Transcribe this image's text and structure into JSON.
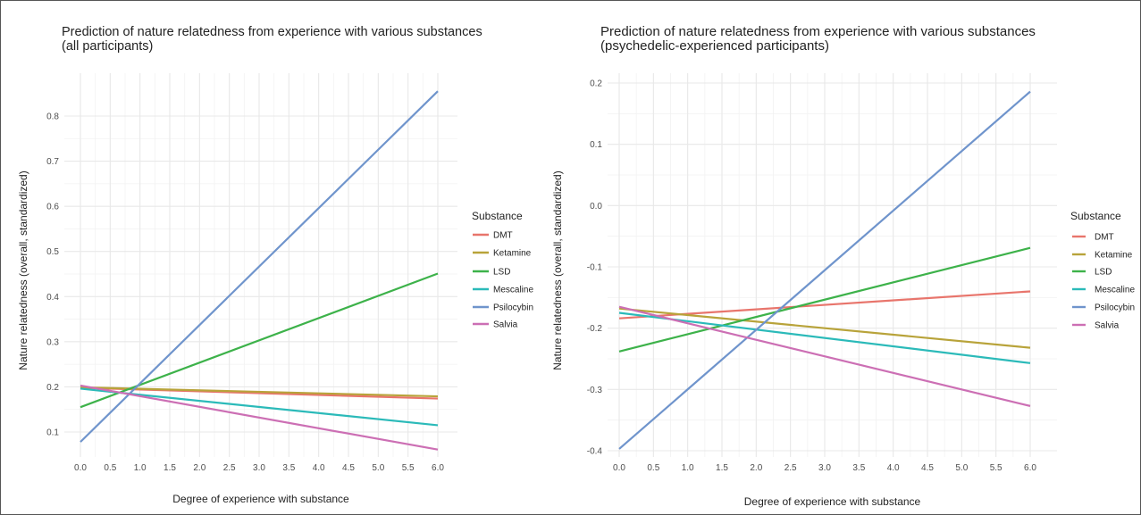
{
  "chart_data": [
    {
      "type": "line",
      "title": "Prediction of nature relatedness from experience with various substances",
      "subtitle": "(all participants)",
      "xlabel": "Degree of experience with substance",
      "ylabel": "Nature relatedness (overall, standardized)",
      "xlim": [
        0,
        6
      ],
      "ylim": [
        0.06,
        0.86
      ],
      "x_ticks": [
        "0.0",
        "0.5",
        "1.0",
        "1.5",
        "2.0",
        "2.5",
        "3.0",
        "3.5",
        "4.0",
        "4.5",
        "5.0",
        "5.5",
        "6.0"
      ],
      "y_ticks": [
        0.1,
        0.2,
        0.3,
        0.4,
        0.5,
        0.6,
        0.7,
        0.8
      ],
      "y_tick_labels": [
        "0.1",
        "0.2",
        "0.3",
        "0.4",
        "0.5",
        "0.6",
        "0.7",
        "0.8"
      ],
      "grid": true,
      "legend_title": "Substance",
      "legend_position": "right",
      "series": [
        {
          "name": "DMT",
          "color": "#E8756C",
          "x": [
            0,
            6
          ],
          "y": [
            0.198,
            0.174
          ]
        },
        {
          "name": "Ketamine",
          "color": "#B8A33A",
          "x": [
            0,
            6
          ],
          "y": [
            0.199,
            0.179
          ]
        },
        {
          "name": "LSD",
          "color": "#3DB24A",
          "x": [
            0,
            6
          ],
          "y": [
            0.155,
            0.451
          ]
        },
        {
          "name": "Mescaline",
          "color": "#2BBAB9",
          "x": [
            0,
            6
          ],
          "y": [
            0.196,
            0.115
          ]
        },
        {
          "name": "Psilocybin",
          "color": "#6F94CC",
          "x": [
            0,
            6
          ],
          "y": [
            0.078,
            0.855
          ]
        },
        {
          "name": "Salvia",
          "color": "#CC6FB4",
          "x": [
            0,
            6
          ],
          "y": [
            0.203,
            0.061
          ]
        }
      ]
    },
    {
      "type": "line",
      "title": "Prediction of nature relatedness from experience with various substances",
      "subtitle": "(psychedelic-experienced participants)",
      "xlabel": "Degree of experience with substance",
      "ylabel": "Nature relatedness (overall, standardized)",
      "xlim": [
        0,
        6
      ],
      "ylim": [
        -0.4,
        0.19
      ],
      "x_ticks": [
        "0.0",
        "0.5",
        "1.0",
        "1.5",
        "2.0",
        "2.5",
        "3.0",
        "3.5",
        "4.0",
        "4.5",
        "5.0",
        "5.5",
        "6.0"
      ],
      "y_ticks": [
        -0.4,
        -0.3,
        -0.2,
        -0.1,
        0.0,
        0.1,
        0.2
      ],
      "y_tick_labels": [
        "-0.4",
        "-0.3",
        "-0.2",
        "-0.1",
        "0.0",
        "0.1",
        "0.2"
      ],
      "grid": true,
      "legend_title": "Substance",
      "legend_position": "right",
      "series": [
        {
          "name": "DMT",
          "color": "#E8756C",
          "x": [
            0,
            6
          ],
          "y": [
            -0.184,
            -0.14
          ]
        },
        {
          "name": "Ketamine",
          "color": "#B8A33A",
          "x": [
            0,
            6
          ],
          "y": [
            -0.168,
            -0.232
          ]
        },
        {
          "name": "LSD",
          "color": "#3DB24A",
          "x": [
            0,
            6
          ],
          "y": [
            -0.238,
            -0.069
          ]
        },
        {
          "name": "Mescaline",
          "color": "#2BBAB9",
          "x": [
            0,
            6
          ],
          "y": [
            -0.175,
            -0.257
          ]
        },
        {
          "name": "Psilocybin",
          "color": "#6F94CC",
          "x": [
            0,
            6
          ],
          "y": [
            -0.397,
            0.186
          ]
        },
        {
          "name": "Salvia",
          "color": "#CC6FB4",
          "x": [
            0,
            6
          ],
          "y": [
            -0.165,
            -0.327
          ]
        }
      ]
    }
  ]
}
